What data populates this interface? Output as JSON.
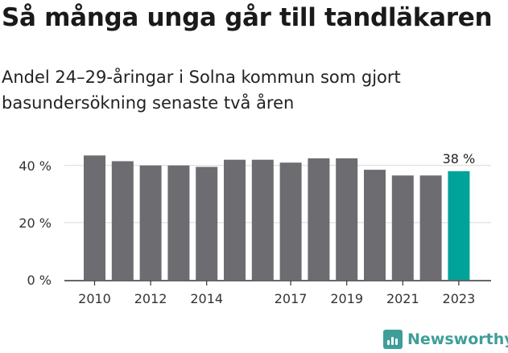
{
  "title": "Så många unga går till tandläkaren",
  "subtitle": "Andel 24–29-åringar i Solna kommun som gjort basundersökning senaste två åren",
  "brand": "Newsworthy",
  "colors": {
    "bar": "#6d6c71",
    "highlight": "#00a399",
    "axis": "#333333",
    "grid": "#d9d9d9",
    "brand": "#3f9e99"
  },
  "chart_data": {
    "type": "bar",
    "title": "Så många unga går till tandläkaren",
    "subtitle": "Andel 24–29-åringar i Solna kommun som gjort basundersökning senaste två åren",
    "xlabel": "",
    "ylabel": "",
    "x": [
      2010,
      2011,
      2012,
      2013,
      2014,
      2015,
      2016,
      2017,
      2018,
      2019,
      2020,
      2021,
      2022,
      2023
    ],
    "values": [
      43.5,
      41.5,
      40,
      40,
      39.5,
      42,
      42,
      41,
      42.5,
      42.5,
      38.5,
      36.5,
      36.5,
      38
    ],
    "x_tick_labels": [
      "2010",
      "2012",
      "2014",
      "2017",
      "2019",
      "2021",
      "2023"
    ],
    "y_ticks": [
      0,
      20,
      40
    ],
    "y_tick_labels": [
      "0 %",
      "20 %",
      "40 %"
    ],
    "ylim": [
      0,
      45
    ],
    "grid": "horizontal",
    "highlight": {
      "x": 2023,
      "label": "38 %"
    }
  }
}
